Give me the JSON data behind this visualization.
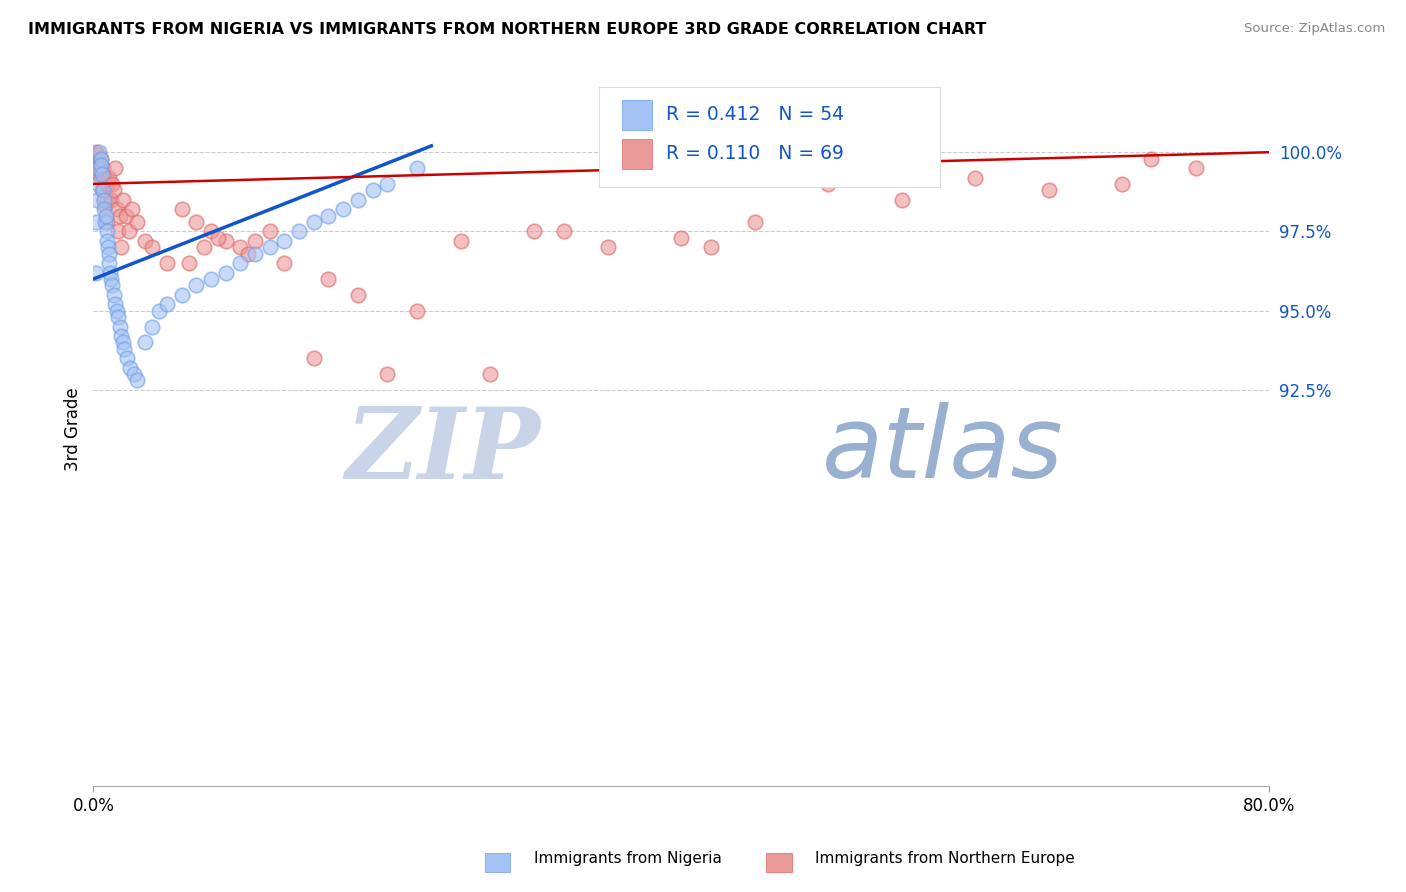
{
  "title": "IMMIGRANTS FROM NIGERIA VS IMMIGRANTS FROM NORTHERN EUROPE 3RD GRADE CORRELATION CHART",
  "source": "Source: ZipAtlas.com",
  "ylabel": "3rd Grade",
  "xmin": 0.0,
  "xmax": 80.0,
  "ymin": 80.0,
  "ymax": 102.5,
  "nigeria_R": 0.412,
  "nigeria_N": 54,
  "northern_europe_R": 0.11,
  "northern_europe_N": 69,
  "nigeria_color": "#a4c2f4",
  "nigeria_edge_color": "#6d9eeb",
  "northern_europe_color": "#ea9999",
  "northern_europe_edge_color": "#e06666",
  "nigeria_line_color": "#1155cc",
  "northern_europe_line_color": "#cc0000",
  "legend_text_color": "#1155cc",
  "background_color": "#ffffff",
  "watermark_zip_color": "#c9d4e8",
  "watermark_atlas_color": "#9ab0d0",
  "ytick_vals": [
    92.5,
    95.0,
    97.5,
    100.0
  ],
  "ytick_labels": [
    "92.5%",
    "95.0%",
    "97.5%",
    "100.0%"
  ],
  "nigeria_x": [
    0.15,
    0.2,
    0.25,
    0.3,
    0.35,
    0.4,
    0.5,
    0.55,
    0.6,
    0.65,
    0.7,
    0.75,
    0.8,
    0.85,
    0.9,
    0.95,
    1.0,
    1.05,
    1.1,
    1.15,
    1.2,
    1.3,
    1.4,
    1.5,
    1.6,
    1.7,
    1.8,
    1.9,
    2.0,
    2.1,
    2.3,
    2.5,
    2.8,
    3.0,
    3.5,
    4.0,
    4.5,
    5.0,
    6.0,
    7.0,
    8.0,
    9.0,
    10.0,
    11.0,
    12.0,
    13.0,
    14.0,
    15.0,
    16.0,
    17.0,
    18.0,
    19.0,
    20.0,
    22.0
  ],
  "nigeria_y": [
    96.2,
    97.8,
    98.5,
    99.0,
    99.5,
    100.0,
    99.8,
    99.6,
    99.3,
    98.8,
    98.5,
    98.2,
    97.8,
    98.0,
    97.5,
    97.2,
    97.0,
    96.8,
    96.5,
    96.2,
    96.0,
    95.8,
    95.5,
    95.2,
    95.0,
    94.8,
    94.5,
    94.2,
    94.0,
    93.8,
    93.5,
    93.2,
    93.0,
    92.8,
    94.0,
    94.5,
    95.0,
    95.2,
    95.5,
    95.8,
    96.0,
    96.2,
    96.5,
    96.8,
    97.0,
    97.2,
    97.5,
    97.8,
    98.0,
    98.2,
    98.5,
    98.8,
    99.0,
    99.5
  ],
  "ne_x": [
    0.1,
    0.15,
    0.2,
    0.25,
    0.3,
    0.35,
    0.4,
    0.45,
    0.5,
    0.55,
    0.6,
    0.65,
    0.7,
    0.75,
    0.8,
    0.85,
    0.9,
    0.95,
    1.0,
    1.1,
    1.2,
    1.3,
    1.4,
    1.5,
    1.6,
    1.7,
    1.8,
    1.9,
    2.0,
    2.2,
    2.4,
    2.6,
    3.0,
    3.5,
    4.0,
    5.0,
    6.0,
    7.0,
    8.0,
    9.0,
    10.0,
    12.0,
    15.0,
    20.0,
    25.0,
    30.0,
    35.0,
    40.0,
    45.0,
    50.0,
    55.0,
    60.0,
    65.0,
    70.0,
    75.0,
    6.5,
    7.5,
    8.5,
    10.5,
    11.0,
    13.0,
    16.0,
    18.0,
    22.0,
    27.0,
    32.0,
    42.0,
    52.0,
    72.0
  ],
  "ne_y": [
    99.8,
    99.5,
    100.0,
    99.7,
    99.9,
    99.5,
    99.3,
    99.6,
    99.2,
    99.8,
    98.8,
    99.5,
    98.5,
    99.2,
    98.3,
    99.0,
    97.8,
    98.5,
    99.0,
    99.2,
    98.5,
    99.0,
    98.8,
    99.5,
    98.2,
    97.5,
    98.0,
    97.0,
    98.5,
    98.0,
    97.5,
    98.2,
    97.8,
    97.2,
    97.0,
    96.5,
    98.2,
    97.8,
    97.5,
    97.2,
    97.0,
    97.5,
    93.5,
    93.0,
    97.2,
    97.5,
    97.0,
    97.3,
    97.8,
    99.0,
    98.5,
    99.2,
    98.8,
    99.0,
    99.5,
    96.5,
    97.0,
    97.3,
    96.8,
    97.2,
    96.5,
    96.0,
    95.5,
    95.0,
    93.0,
    97.5,
    97.0,
    99.5,
    99.8
  ]
}
